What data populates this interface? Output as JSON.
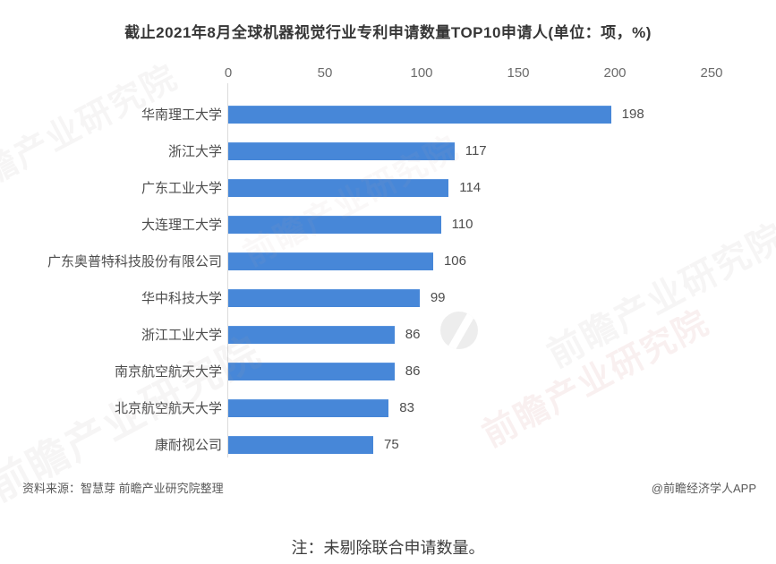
{
  "title": "截止2021年8月全球机器视觉行业专利申请数量TOP10申请人(单位：项，%)",
  "chart_data": {
    "type": "bar",
    "orientation": "horizontal",
    "title": "截止2021年8月全球机器视觉行业专利申请数量TOP10申请人(单位：项，%)",
    "categories": [
      "华南理工大学",
      "浙江大学",
      "广东工业大学",
      "大连理工大学",
      "广东奥普特科技股份有限公司",
      "华中科技大学",
      "浙江工业大学",
      "南京航空航天大学",
      "北京航空航天大学",
      "康耐视公司"
    ],
    "values": [
      198,
      117,
      114,
      110,
      106,
      99,
      86,
      86,
      83,
      75
    ],
    "xlabel": "",
    "ylabel": "",
    "xlim": [
      0,
      250
    ],
    "x_ticks": [
      0,
      50,
      100,
      150,
      200,
      250
    ],
    "grid": false,
    "value_labels": true,
    "legend_position": "none",
    "bar_color": "#4787d8"
  },
  "footer": {
    "source": "资料来源：智慧芽 前瞻产业研究院整理",
    "credit": "@前瞻经济学人APP"
  },
  "note": "注：未剔除联合申请数量。",
  "watermark": {
    "text": "前瞻产业研究院"
  },
  "colors": {
    "bar": "#4787d8",
    "title_text": "#363636",
    "category_text": "#4d4d4d",
    "tick_text": "#6b6b6b",
    "axis_line": "#dcdcdc",
    "footer_text": "#595959",
    "note_text": "#3d3d3d",
    "background": "#ffffff"
  }
}
